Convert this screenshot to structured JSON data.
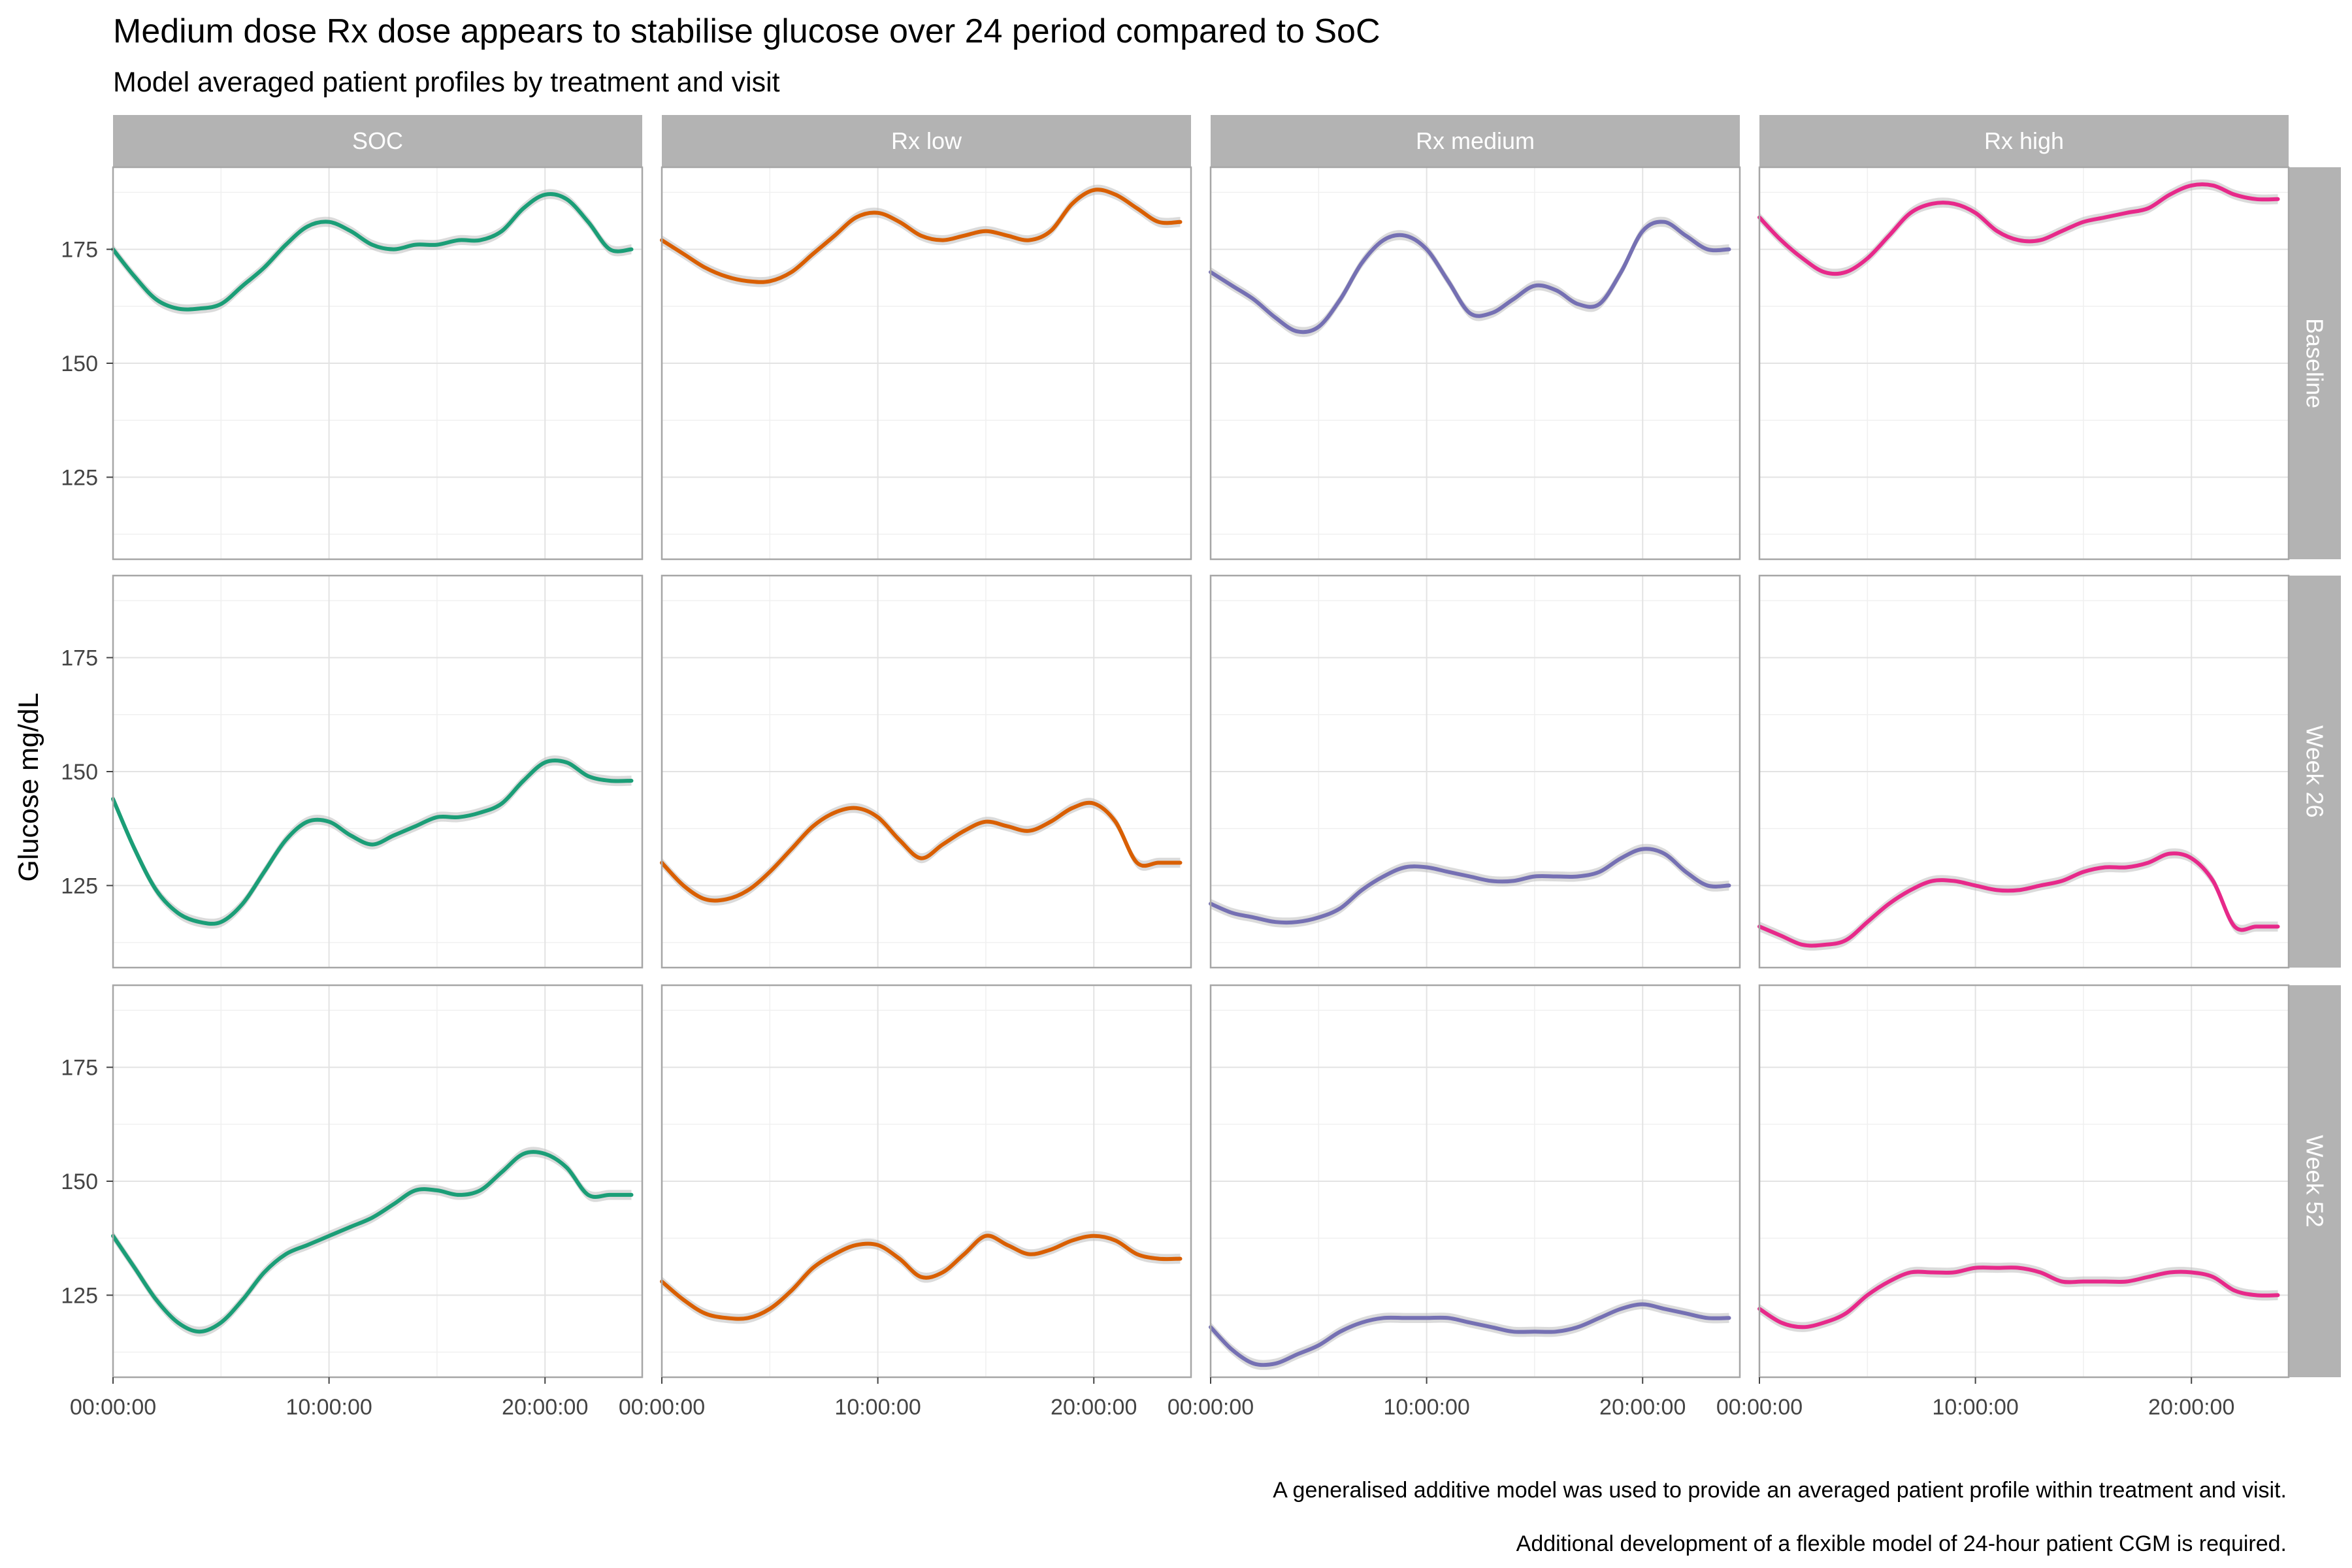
{
  "chart_data": {
    "type": "line",
    "title": "Medium dose Rx dose appears to stabilise glucose over 24 period compared to SoC",
    "subtitle": "Model averaged patient profiles by treatment and visit",
    "ylabel": "Glucose mg/dL",
    "xlabel": "",
    "captions": [
      "A generalised additive model was used to provide an averaged patient profile within treatment and visit.",
      "Additional development of a flexible model of 24-hour patient CGM is required."
    ],
    "xlim": [
      0,
      24.5
    ],
    "ylim": [
      107,
      193
    ],
    "x_ticks": [
      {
        "value": 0,
        "label": "00:00:00"
      },
      {
        "value": 10,
        "label": "10:00:00"
      },
      {
        "value": 20,
        "label": "20:00:00"
      }
    ],
    "y_ticks": [
      {
        "value": 125,
        "label": "125"
      },
      {
        "value": 150,
        "label": "150"
      },
      {
        "value": 175,
        "label": "175"
      }
    ],
    "grid": true,
    "legend": "none",
    "ribbon": true,
    "x": [
      0,
      1,
      2,
      3,
      4,
      5,
      6,
      7,
      8,
      9,
      10,
      11,
      12,
      13,
      14,
      15,
      16,
      17,
      18,
      19,
      20,
      21,
      22,
      23,
      24
    ],
    "treatments": [
      {
        "name": "SOC",
        "color": "#1B9E77"
      },
      {
        "name": "Rx low",
        "color": "#D95F02"
      },
      {
        "name": "Rx medium",
        "color": "#7570B3"
      },
      {
        "name": "Rx high",
        "color": "#E7298A"
      }
    ],
    "visits": [
      "Baseline",
      "Week 26",
      "Week 52"
    ],
    "series": [
      {
        "treatment": "SOC",
        "visit": "Baseline",
        "values": [
          175,
          169,
          164,
          162,
          162,
          163,
          167,
          171,
          176,
          180,
          181,
          179,
          176,
          175,
          176,
          176,
          177,
          177,
          179,
          184,
          187,
          186,
          181,
          175,
          175
        ]
      },
      {
        "treatment": "SOC",
        "visit": "Week 26",
        "values": [
          144,
          133,
          124,
          119,
          117,
          117,
          121,
          128,
          135,
          139,
          139,
          136,
          134,
          136,
          138,
          140,
          140,
          141,
          143,
          148,
          152,
          152,
          149,
          148,
          148
        ]
      },
      {
        "treatment": "SOC",
        "visit": "Week 52",
        "values": [
          138,
          131,
          124,
          119,
          117,
          119,
          124,
          130,
          134,
          136,
          138,
          140,
          142,
          145,
          148,
          148,
          147,
          148,
          152,
          156,
          156,
          153,
          147,
          147,
          147
        ]
      },
      {
        "treatment": "Rx low",
        "visit": "Baseline",
        "values": [
          177,
          174,
          171,
          169,
          168,
          168,
          170,
          174,
          178,
          182,
          183,
          181,
          178,
          177,
          178,
          179,
          178,
          177,
          179,
          185,
          188,
          187,
          184,
          181,
          181
        ]
      },
      {
        "treatment": "Rx low",
        "visit": "Week 26",
        "values": [
          130,
          125,
          122,
          122,
          124,
          128,
          133,
          138,
          141,
          142,
          140,
          135,
          131,
          134,
          137,
          139,
          138,
          137,
          139,
          142,
          143,
          139,
          130,
          130,
          130
        ]
      },
      {
        "treatment": "Rx low",
        "visit": "Week 52",
        "values": [
          128,
          124,
          121,
          120,
          120,
          122,
          126,
          131,
          134,
          136,
          136,
          133,
          129,
          130,
          134,
          138,
          136,
          134,
          135,
          137,
          138,
          137,
          134,
          133,
          133
        ]
      },
      {
        "treatment": "Rx medium",
        "visit": "Baseline",
        "values": [
          170,
          167,
          164,
          160,
          157,
          158,
          164,
          172,
          177,
          178,
          175,
          168,
          161,
          161,
          164,
          167,
          166,
          163,
          163,
          170,
          179,
          181,
          178,
          175,
          175
        ]
      },
      {
        "treatment": "Rx medium",
        "visit": "Week 26",
        "values": [
          121,
          119,
          118,
          117,
          117,
          118,
          120,
          124,
          127,
          129,
          129,
          128,
          127,
          126,
          126,
          127,
          127,
          127,
          128,
          131,
          133,
          132,
          128,
          125,
          125
        ]
      },
      {
        "treatment": "Rx medium",
        "visit": "Week 52",
        "values": [
          118,
          113,
          110,
          110,
          112,
          114,
          117,
          119,
          120,
          120,
          120,
          120,
          119,
          118,
          117,
          117,
          117,
          118,
          120,
          122,
          123,
          122,
          121,
          120,
          120
        ]
      },
      {
        "treatment": "Rx high",
        "visit": "Baseline",
        "values": [
          182,
          177,
          173,
          170,
          170,
          173,
          178,
          183,
          185,
          185,
          183,
          179,
          177,
          177,
          179,
          181,
          182,
          183,
          184,
          187,
          189,
          189,
          187,
          186,
          186
        ]
      },
      {
        "treatment": "Rx high",
        "visit": "Week 26",
        "values": [
          116,
          114,
          112,
          112,
          113,
          117,
          121,
          124,
          126,
          126,
          125,
          124,
          124,
          125,
          126,
          128,
          129,
          129,
          130,
          132,
          131,
          126,
          116,
          116,
          116
        ]
      },
      {
        "treatment": "Rx high",
        "visit": "Week 52",
        "values": [
          122,
          119,
          118,
          119,
          121,
          125,
          128,
          130,
          130,
          130,
          131,
          131,
          131,
          130,
          128,
          128,
          128,
          128,
          129,
          130,
          130,
          129,
          126,
          125,
          125
        ]
      }
    ]
  }
}
